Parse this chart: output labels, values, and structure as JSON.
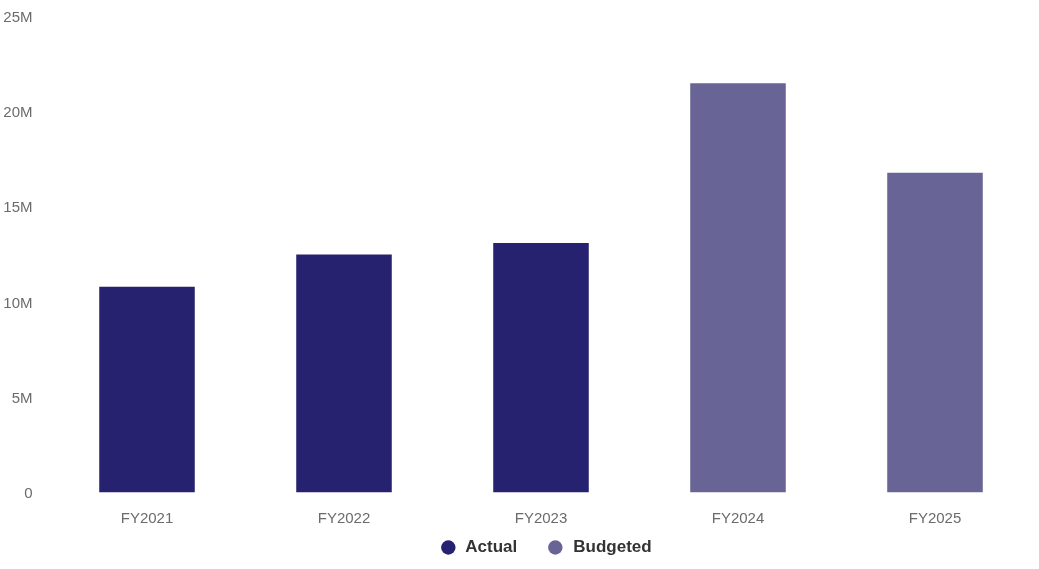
{
  "chart_data": {
    "type": "bar",
    "categories": [
      "FY2021",
      "FY2022",
      "FY2023",
      "FY2024",
      "FY2025"
    ],
    "series": [
      {
        "name": "Actual",
        "color": "#262270",
        "values": [
          10800000,
          12500000,
          13100000,
          null,
          null
        ]
      },
      {
        "name": "Budgeted",
        "color": "#686496",
        "values": [
          null,
          null,
          null,
          21500000,
          16800000
        ]
      }
    ],
    "ylim": [
      0,
      25000000
    ],
    "yticks": [
      0,
      {
        "value": 5000000,
        "label": "5M"
      },
      {
        "value": 10000000,
        "label": "10M"
      },
      {
        "value": 15000000,
        "label": "15M"
      },
      {
        "value": 20000000,
        "label": "20M"
      },
      {
        "value": 25000000,
        "label": "25M"
      }
    ],
    "grid": false,
    "legend": "bottom"
  }
}
